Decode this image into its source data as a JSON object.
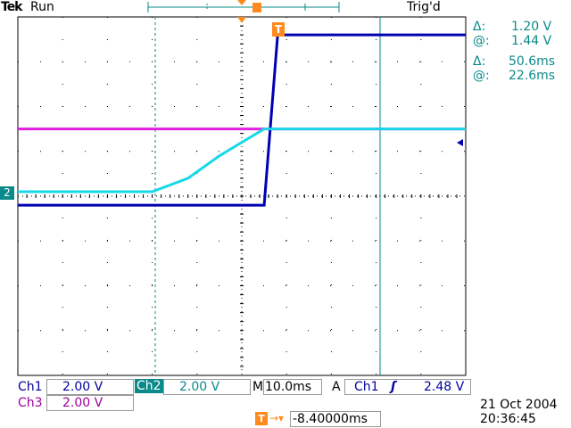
{
  "header": {
    "brand": "Tek",
    "run_state": "Run",
    "trigger_status": "Trig'd",
    "trigger_marker": "T"
  },
  "cursor_readout": {
    "v_delta_symbol": "Δ:",
    "v_delta": "1.20 V",
    "v_at_symbol": "@:",
    "v_at": "1.44 V",
    "t_delta_symbol": "Δ:",
    "t_delta": "50.6ms",
    "t_at_symbol": "@:",
    "t_at": "22.6ms"
  },
  "channel_marker": "2",
  "status": {
    "ch1_label": "Ch1",
    "ch1_scale": "2.00 V",
    "ch2_label": "Ch2",
    "ch2_scale": "2.00 V",
    "ch3_label": "Ch3",
    "ch3_scale": "2.00 V",
    "timebase_prefix": "M",
    "timebase": "10.0ms",
    "trigger_mode": "A",
    "trigger_source": "Ch1",
    "trigger_slope": "ʃ",
    "trigger_level": "2.48 V",
    "trigger_position": "-8.40000ms",
    "date": "21 Oct  2004",
    "time": "20:36:45"
  },
  "colors": {
    "ch1": "#0000b0",
    "ch2": "#18d8e8",
    "ch3": "#e020e0",
    "grid": "#000000",
    "cursor": "#0a8a8a",
    "trigger": "#ff8a1e"
  },
  "chart_data": {
    "type": "line",
    "x": [
      0,
      15,
      30,
      38,
      45,
      55,
      58,
      100
    ],
    "series": [
      {
        "values": [
          -0.2,
          -0.2,
          -0.2,
          -0.2,
          -0.2,
          -0.2,
          3.6,
          3.6
        ]
      },
      {
        "values": [
          0.1,
          0.1,
          0.1,
          0.4,
          0.9,
          1.5,
          1.5,
          1.5
        ]
      },
      {
        "values": [
          1.5,
          1.5,
          1.5,
          1.5,
          1.5,
          1.5,
          1.5,
          1.5
        ]
      }
    ],
    "xlim": [
      0,
      100
    ],
    "ylim": [
      -4,
      4
    ],
    "grid": true
  }
}
